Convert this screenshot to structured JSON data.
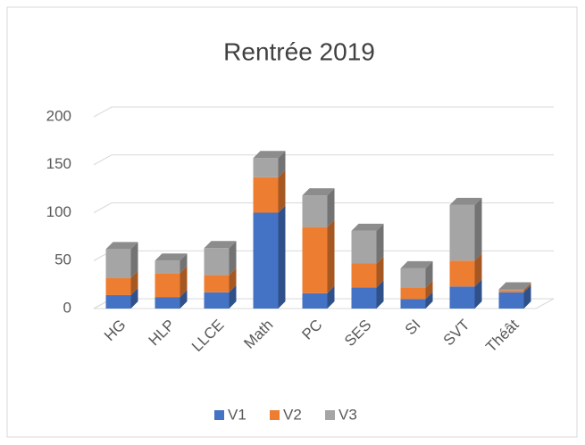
{
  "chart_data": {
    "type": "bar3d_stacked",
    "title": "Rentrée 2019",
    "categories": [
      "HG",
      "HLP",
      "LLCE",
      "Math",
      "PC",
      "SES",
      "SI",
      "SVT",
      "Théât"
    ],
    "series": [
      {
        "name": "V1",
        "color": "#4472c4",
        "values": [
          14,
          12,
          17,
          100,
          16,
          22,
          10,
          23,
          17
        ]
      },
      {
        "name": "V2",
        "color": "#ed7d31",
        "values": [
          18,
          25,
          18,
          37,
          69,
          25,
          12,
          27,
          2
        ]
      },
      {
        "name": "V3",
        "color": "#a5a5a5",
        "values": [
          30,
          13,
          28,
          20,
          33,
          34,
          20,
          58,
          1
        ]
      }
    ],
    "ylim": [
      0,
      200
    ],
    "yticks": [
      0,
      50,
      100,
      150,
      200
    ],
    "grid": true,
    "legend": "bottom"
  }
}
